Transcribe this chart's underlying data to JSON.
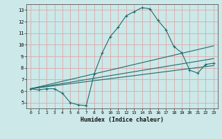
{
  "title": "",
  "xlabel": "Humidex (Indice chaleur)",
  "ylabel": "",
  "bg_color": "#cce8e8",
  "grid_color": "#dba8a8",
  "line_color": "#1e6b6b",
  "xlim": [
    -0.5,
    23.5
  ],
  "ylim": [
    4.5,
    13.5
  ],
  "xticks": [
    0,
    1,
    2,
    3,
    4,
    5,
    6,
    7,
    8,
    9,
    10,
    11,
    12,
    13,
    14,
    15,
    16,
    17,
    18,
    19,
    20,
    21,
    22,
    23
  ],
  "yticks": [
    5,
    6,
    7,
    8,
    9,
    10,
    11,
    12,
    13
  ],
  "line1_x": [
    0,
    1,
    2,
    3,
    4,
    5,
    6,
    7,
    8,
    9,
    10,
    11,
    12,
    13,
    14,
    15,
    16,
    17,
    18,
    19,
    20,
    21,
    22,
    23
  ],
  "line1_y": [
    6.2,
    6.1,
    6.2,
    6.2,
    5.8,
    5.0,
    4.8,
    4.75,
    7.5,
    9.3,
    10.7,
    11.5,
    12.5,
    12.85,
    13.2,
    13.1,
    12.1,
    11.3,
    9.85,
    9.3,
    7.8,
    7.55,
    8.3,
    8.4
  ],
  "line2_x": [
    0,
    23
  ],
  "line2_y": [
    6.2,
    9.9
  ],
  "line3_x": [
    0,
    23
  ],
  "line3_y": [
    6.2,
    8.8
  ],
  "line4_x": [
    0,
    23
  ],
  "line4_y": [
    6.2,
    8.2
  ]
}
